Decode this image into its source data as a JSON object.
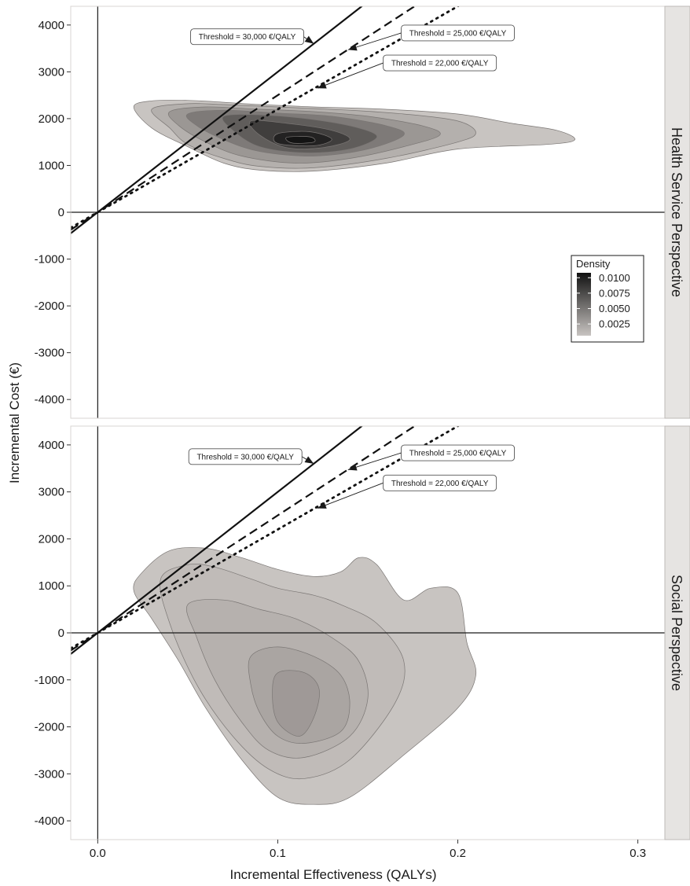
{
  "chart_data": {
    "type": "contour-density",
    "xlabel": "Incremental Effectiveness (QALYs)",
    "ylabel": "Incremental Cost (€)",
    "xlim": [
      -0.015,
      0.315
    ],
    "ylim": [
      -4400,
      4400
    ],
    "x_ticks": [
      {
        "value": 0.0,
        "label": "0.0"
      },
      {
        "value": 0.1,
        "label": "0.1"
      },
      {
        "value": 0.2,
        "label": "0.2"
      },
      {
        "value": 0.3,
        "label": "0.3"
      }
    ],
    "y_ticks": [
      {
        "value": 4000,
        "label": "4000"
      },
      {
        "value": 3000,
        "label": "3000"
      },
      {
        "value": 2000,
        "label": "2000"
      },
      {
        "value": 1000,
        "label": "1000"
      },
      {
        "value": 0,
        "label": "0"
      },
      {
        "value": -1000,
        "label": "-1000"
      },
      {
        "value": -2000,
        "label": "-2000"
      },
      {
        "value": -3000,
        "label": "-3000"
      },
      {
        "value": -4000,
        "label": "-4000"
      }
    ],
    "thresholds": [
      {
        "label": "Threshold = 30,000 €/QALY",
        "slope": 30000,
        "style": "solid"
      },
      {
        "label": "Threshold = 25,000 €/QALY",
        "slope": 25000,
        "style": "dashed"
      },
      {
        "label": "Threshold = 22,000 €/QALY",
        "slope": 22000,
        "style": "dotted"
      }
    ],
    "legend": {
      "title": "Density",
      "placement": "right",
      "labels": [
        "0.0100",
        "0.0075",
        "0.0050",
        "0.0025"
      ],
      "values": [
        0.01,
        0.0075,
        0.005,
        0.0025
      ],
      "color_high": "#111111",
      "color_low": "#c8c4c1"
    },
    "panels": [
      {
        "strip_label": "Health Service Perspective",
        "annotations": [
          {
            "threshold": 0,
            "box_x": 0.083,
            "box_y": 3750,
            "arrow_x": 0.12,
            "arrow_y": 3600
          },
          {
            "threshold": 1,
            "box_x": 0.2,
            "box_y": 3830,
            "arrow_x": 0.139,
            "arrow_y": 3470
          },
          {
            "threshold": 2,
            "box_x": 0.19,
            "box_y": 3190,
            "arrow_x": 0.122,
            "arrow_y": 2650
          }
        ],
        "contours": [
          {
            "level": 0.0012,
            "shade": "#c8c4c1",
            "cx": [
              0.02,
              0.03,
              0.05,
              0.07,
              0.09,
              0.12,
              0.16,
              0.2,
              0.23,
              0.255,
              0.265,
              0.25,
              0.2,
              0.16,
              0.12,
              0.09,
              0.07,
              0.05,
              0.03
            ],
            "cy": [
              2250,
              2380,
              2390,
              2350,
              2300,
              2250,
              2200,
              2100,
              1900,
              1750,
              1550,
              1450,
              1350,
              1050,
              880,
              900,
              1050,
              1400,
              1800
            ]
          },
          {
            "level": 0.0025,
            "shade": "#b4b0ad",
            "cx": [
              0.03,
              0.05,
              0.07,
              0.1,
              0.14,
              0.17,
              0.2,
              0.21,
              0.2,
              0.16,
              0.12,
              0.09,
              0.07,
              0.05,
              0.04
            ],
            "cy": [
              2200,
              2320,
              2300,
              2250,
              2180,
              2100,
              1950,
              1700,
              1500,
              1150,
              950,
              980,
              1150,
              1450,
              1800
            ]
          },
          {
            "level": 0.004,
            "shade": "#9b9794",
            "cx": [
              0.04,
              0.06,
              0.09,
              0.12,
              0.15,
              0.18,
              0.19,
              0.17,
              0.14,
              0.11,
              0.08,
              0.06,
              0.045
            ],
            "cy": [
              2150,
              2250,
              2200,
              2150,
              2050,
              1850,
              1650,
              1400,
              1150,
              1050,
              1200,
              1500,
              1850
            ]
          },
          {
            "level": 0.0055,
            "shade": "#7e7a78",
            "cx": [
              0.05,
              0.07,
              0.1,
              0.13,
              0.16,
              0.17,
              0.15,
              0.12,
              0.09,
              0.07,
              0.055
            ],
            "cy": [
              2100,
              2180,
              2120,
              2050,
              1850,
              1650,
              1350,
              1200,
              1300,
              1550,
              1850
            ]
          },
          {
            "level": 0.007,
            "shade": "#605d5b",
            "cx": [
              0.07,
              0.09,
              0.12,
              0.145,
              0.155,
              0.14,
              0.115,
              0.09,
              0.075
            ],
            "cy": [
              2050,
              2080,
              1980,
              1800,
              1600,
              1350,
              1270,
              1400,
              1750
            ]
          },
          {
            "level": 0.0085,
            "shade": "#403e3d",
            "cx": [
              0.085,
              0.105,
              0.13,
              0.14,
              0.125,
              0.105,
              0.09
            ],
            "cy": [
              1950,
              1900,
              1750,
              1550,
              1380,
              1380,
              1650
            ]
          },
          {
            "level": 0.0098,
            "shade": "#232222",
            "cx": [
              0.1,
              0.118,
              0.13,
              0.12,
              0.1
            ],
            "cy": [
              1680,
              1720,
              1560,
              1420,
              1470
            ]
          },
          {
            "level": 0.0106,
            "shade": "#141414",
            "cx": [
              0.105,
              0.118,
              0.12,
              0.108
            ],
            "cy": [
              1600,
              1610,
              1500,
              1480
            ]
          }
        ]
      },
      {
        "strip_label": "Social Perspective",
        "annotations": [
          {
            "threshold": 0,
            "box_x": 0.082,
            "box_y": 3750,
            "arrow_x": 0.12,
            "arrow_y": 3600
          },
          {
            "threshold": 1,
            "box_x": 0.2,
            "box_y": 3830,
            "arrow_x": 0.139,
            "arrow_y": 3470
          },
          {
            "threshold": 2,
            "box_x": 0.19,
            "box_y": 3190,
            "arrow_x": 0.122,
            "arrow_y": 2650
          }
        ],
        "contours": [
          {
            "level": 0.0006,
            "shade": "#c8c4c1",
            "cx": [
              0.025,
              0.04,
              0.06,
              0.08,
              0.1,
              0.12,
              0.135,
              0.145,
              0.155,
              0.17,
              0.185,
              0.2,
              0.205,
              0.21,
              0.2,
              0.17,
              0.14,
              0.12,
              0.1,
              0.08,
              0.06,
              0.045,
              0.03,
              0.02
            ],
            "cy": [
              1300,
              1750,
              1800,
              1600,
              1350,
              1200,
              1300,
              1600,
              1450,
              700,
              950,
              850,
              -200,
              -900,
              -1600,
              -2600,
              -3500,
              -3650,
              -3500,
              -2700,
              -1600,
              -600,
              300,
              900
            ]
          },
          {
            "level": 0.001,
            "shade": "#c0bbb8",
            "cx": [
              0.035,
              0.05,
              0.065,
              0.085,
              0.1,
              0.12,
              0.135,
              0.155,
              0.17,
              0.165,
              0.14,
              0.115,
              0.095,
              0.075,
              0.055,
              0.04
            ],
            "cy": [
              1150,
              1450,
              1400,
              1150,
              950,
              800,
              600,
              200,
              -600,
              -1500,
              -2700,
              -3100,
              -2900,
              -2200,
              -1100,
              200
            ]
          },
          {
            "level": 0.0015,
            "shade": "#b6b1ae",
            "cx": [
              0.05,
              0.07,
              0.09,
              0.11,
              0.13,
              0.145,
              0.15,
              0.14,
              0.115,
              0.095,
              0.08,
              0.065,
              0.055
            ],
            "cy": [
              600,
              700,
              500,
              300,
              -100,
              -600,
              -1400,
              -2200,
              -2650,
              -2500,
              -1900,
              -1000,
              -100
            ]
          },
          {
            "level": 0.002,
            "shade": "#aaa5a2",
            "cx": [
              0.085,
              0.1,
              0.12,
              0.135,
              0.14,
              0.135,
              0.115,
              0.1,
              0.09,
              0.085
            ],
            "cy": [
              -500,
              -300,
              -500,
              -900,
              -1500,
              -2100,
              -2350,
              -2200,
              -1700,
              -1100
            ]
          },
          {
            "level": 0.0025,
            "shade": "#9f9997",
            "cx": [
              0.1,
              0.115,
              0.123,
              0.12,
              0.112,
              0.1,
              0.097
            ],
            "cy": [
              -850,
              -850,
              -1200,
              -1800,
              -2200,
              -1900,
              -1300
            ]
          }
        ]
      }
    ]
  }
}
